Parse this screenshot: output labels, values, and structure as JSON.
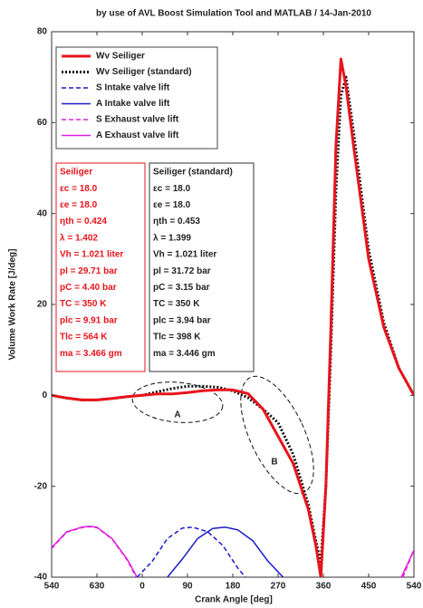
{
  "chart_data": {
    "type": "line",
    "title": "by use of AVL Boost Simulation Tool and MATLAB  /  14-Jan-2010",
    "x_label": "Crank Angle [deg]",
    "y_label": "Volume Work Rate  [J/deg]",
    "xlim": [
      -180,
      540
    ],
    "xticks": [
      {
        "value": -180,
        "label": "540"
      },
      {
        "value": -90,
        "label": "630"
      },
      0,
      90,
      180,
      270,
      360,
      450,
      540
    ],
    "ylim": [
      -40,
      80
    ],
    "yticks": [
      -40,
      -20,
      0,
      20,
      40,
      60,
      80
    ],
    "x": [
      -180,
      -150,
      -120,
      -90,
      -60,
      -30,
      0,
      30,
      60,
      90,
      120,
      150,
      180,
      210,
      240,
      270,
      300,
      330,
      345,
      355,
      365,
      375,
      385,
      395,
      405,
      420,
      450,
      480,
      510,
      540
    ],
    "series": [
      {
        "name": "Wv Seiliger",
        "color": "#e8141c",
        "style": "solid",
        "width": 3,
        "values": [
          0,
          -0.6,
          -1,
          -1,
          -0.7,
          -0.3,
          0,
          0.3,
          0.3,
          0.6,
          1,
          1.2,
          1.2,
          0.4,
          -3,
          -9,
          -15,
          -25,
          -33,
          -40,
          -20,
          15,
          55,
          74,
          68,
          55,
          30,
          15,
          6,
          0
        ]
      },
      {
        "name": "Wv Seiliger (standard)",
        "color": "#111111",
        "style": "dotted",
        "width": 3,
        "values": [
          0,
          -0.6,
          -1,
          -1,
          -0.7,
          -0.3,
          0,
          0.8,
          1.5,
          2,
          2,
          1.8,
          1,
          -0.5,
          -3,
          -6,
          -13,
          -24,
          -32,
          -37,
          -20,
          10,
          45,
          66,
          70,
          58,
          32,
          16,
          6,
          0
        ]
      },
      {
        "name": "S Intake valve lift",
        "color": "#1a1acc",
        "style": "dashed",
        "width": 1.5,
        "x": [
          -10,
          20,
          50,
          80,
          100,
          130,
          160,
          190,
          205
        ],
        "values": [
          -40,
          -36.5,
          -31.5,
          -29.2,
          -29,
          -30,
          -33,
          -38,
          -40
        ]
      },
      {
        "name": "A Intake valve lift",
        "color": "#1a1acc",
        "style": "solid",
        "width": 1.5,
        "x": [
          50,
          80,
          110,
          140,
          165,
          190,
          220,
          250,
          280
        ],
        "values": [
          -40,
          -36,
          -31.5,
          -29.3,
          -29,
          -29.6,
          -32,
          -36.5,
          -40
        ]
      },
      {
        "name": "S Exhaust valve lift",
        "color": "#e020e0",
        "style": "dashed",
        "width": 1.5,
        "x": [
          -180,
          -150,
          -120,
          -105,
          -90,
          -60,
          -30,
          -12,
          0,
          518,
          540
        ],
        "values": [
          -33.7,
          -30.1,
          -29.1,
          -28.9,
          -29.1,
          -31.6,
          -36.2,
          -40,
          null,
          -40,
          -34
        ]
      },
      {
        "name": "A Exhaust valve lift",
        "color": "#e020e0",
        "style": "solid",
        "width": 1.5,
        "x": [
          -180,
          -150,
          -120,
          -105,
          -90,
          -60,
          -30,
          -10,
          0,
          515,
          540
        ],
        "values": [
          -33.5,
          -30,
          -29,
          -28.8,
          -29,
          -31.5,
          -36,
          -40,
          null,
          -40,
          -34
        ]
      }
    ],
    "annotations": {
      "seiliger": [
        "Seiliger",
        "εc = 18.0",
        "εe = 18.0",
        "ηth = 0.424",
        "λ = 1.402",
        "Vh = 1.021 liter",
        "pl = 29.71 bar",
        "pC = 4.40 bar",
        "TC = 350 K",
        "plc = 9.91 bar",
        "Tlc = 564 K",
        "ma = 3.466 gm"
      ],
      "standard": [
        "Seiliger (standard)",
        "εc = 18.0",
        "εe = 18.0",
        "ηth = 0.453",
        "λ = 1.399",
        "Vh = 1.021 liter",
        "pl = 31.72 bar",
        "pC = 3.15 bar",
        "TC = 350 K",
        "plc = 3.94 bar",
        "Tlc = 398 K",
        "ma = 3.446 gm"
      ],
      "regions": [
        "A",
        "B"
      ]
    }
  }
}
